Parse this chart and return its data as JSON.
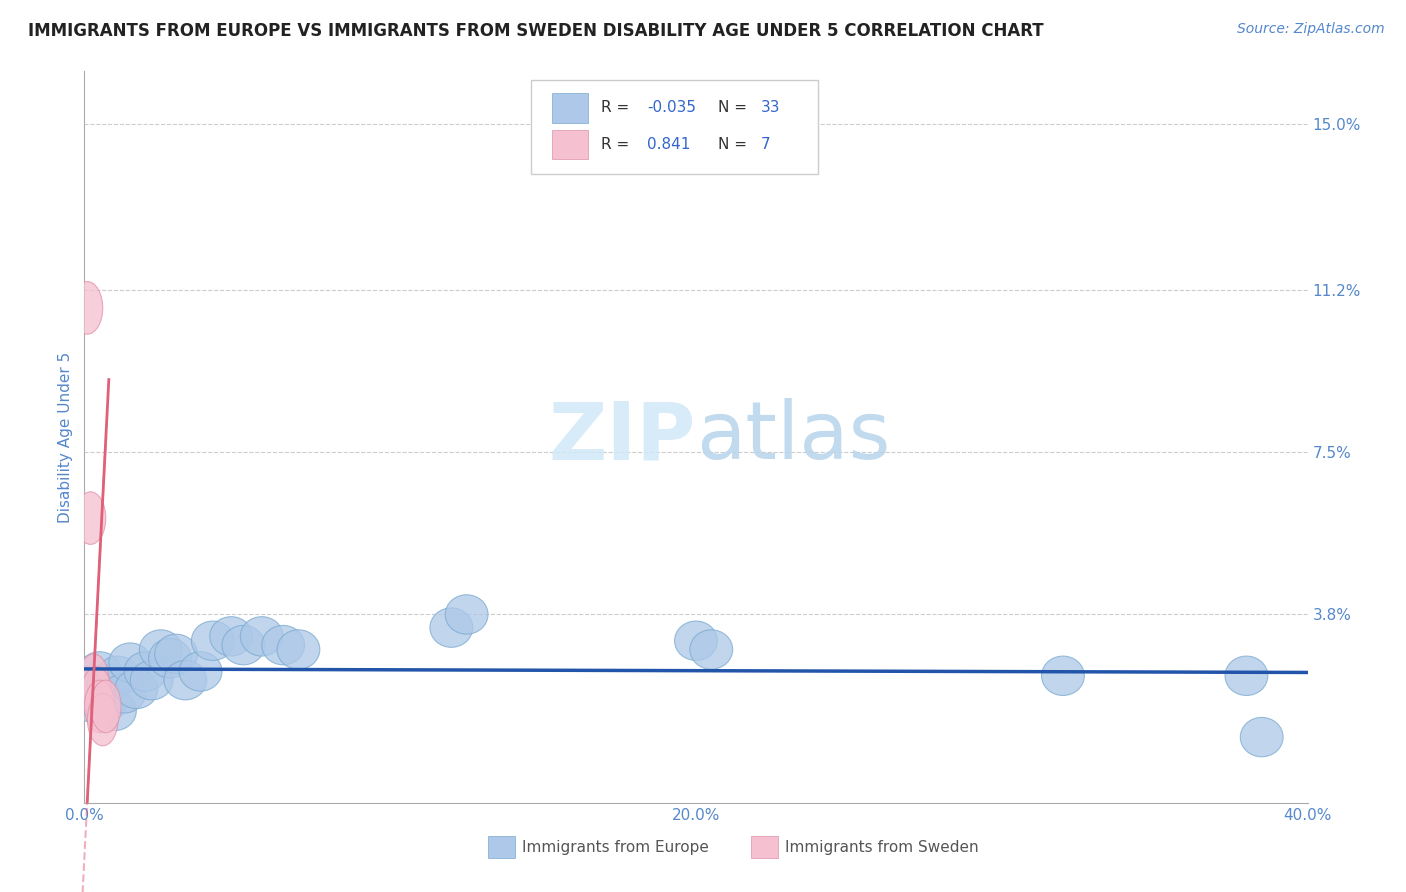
{
  "title": "IMMIGRANTS FROM EUROPE VS IMMIGRANTS FROM SWEDEN DISABILITY AGE UNDER 5 CORRELATION CHART",
  "source_text": "Source: ZipAtlas.com",
  "ylabel": "Disability Age Under 5",
  "xlim": [
    0.0,
    0.4
  ],
  "ylim": [
    -0.005,
    0.162
  ],
  "yticks": [
    0.038,
    0.075,
    0.112,
    0.15
  ],
  "ytick_labels": [
    "3.8%",
    "7.5%",
    "11.2%",
    "15.0%"
  ],
  "xticks": [
    0.0,
    0.1,
    0.2,
    0.3,
    0.4
  ],
  "xtick_labels": [
    "0.0%",
    "",
    "20.0%",
    "",
    "40.0%"
  ],
  "grid_yticks": [
    0.038,
    0.075,
    0.112,
    0.15
  ],
  "blue_color": "#adc8e8",
  "blue_edge_color": "#7aaad0",
  "blue_line_color": "#2255aa",
  "pink_color": "#f5c0d0",
  "pink_edge_color": "#e090a8",
  "pink_line_color": "#e0607a",
  "blue_R": -0.035,
  "blue_N": 33,
  "pink_R": 0.841,
  "pink_N": 7,
  "legend_color": "#3366cc",
  "title_color": "#333333",
  "axis_color": "#5588cc",
  "blue_scatter_x": [
    0.001,
    0.002,
    0.003,
    0.004,
    0.005,
    0.006,
    0.007,
    0.008,
    0.01,
    0.011,
    0.013,
    0.015,
    0.017,
    0.02,
    0.022,
    0.025,
    0.028,
    0.03,
    0.033,
    0.038,
    0.042,
    0.048,
    0.052,
    0.058,
    0.065,
    0.07,
    0.12,
    0.125,
    0.2,
    0.205,
    0.32,
    0.38,
    0.385
  ],
  "blue_scatter_y": [
    0.02,
    0.018,
    0.022,
    0.019,
    0.025,
    0.021,
    0.018,
    0.022,
    0.016,
    0.024,
    0.02,
    0.027,
    0.021,
    0.025,
    0.023,
    0.03,
    0.028,
    0.029,
    0.023,
    0.025,
    0.032,
    0.033,
    0.031,
    0.033,
    0.031,
    0.03,
    0.035,
    0.038,
    0.032,
    0.03,
    0.024,
    0.024,
    0.01
  ],
  "pink_scatter_x": [
    0.001,
    0.002,
    0.003,
    0.004,
    0.005,
    0.006,
    0.007
  ],
  "pink_scatter_y": [
    0.108,
    0.06,
    0.023,
    0.02,
    0.017,
    0.014,
    0.017
  ],
  "background_color": "#ffffff"
}
